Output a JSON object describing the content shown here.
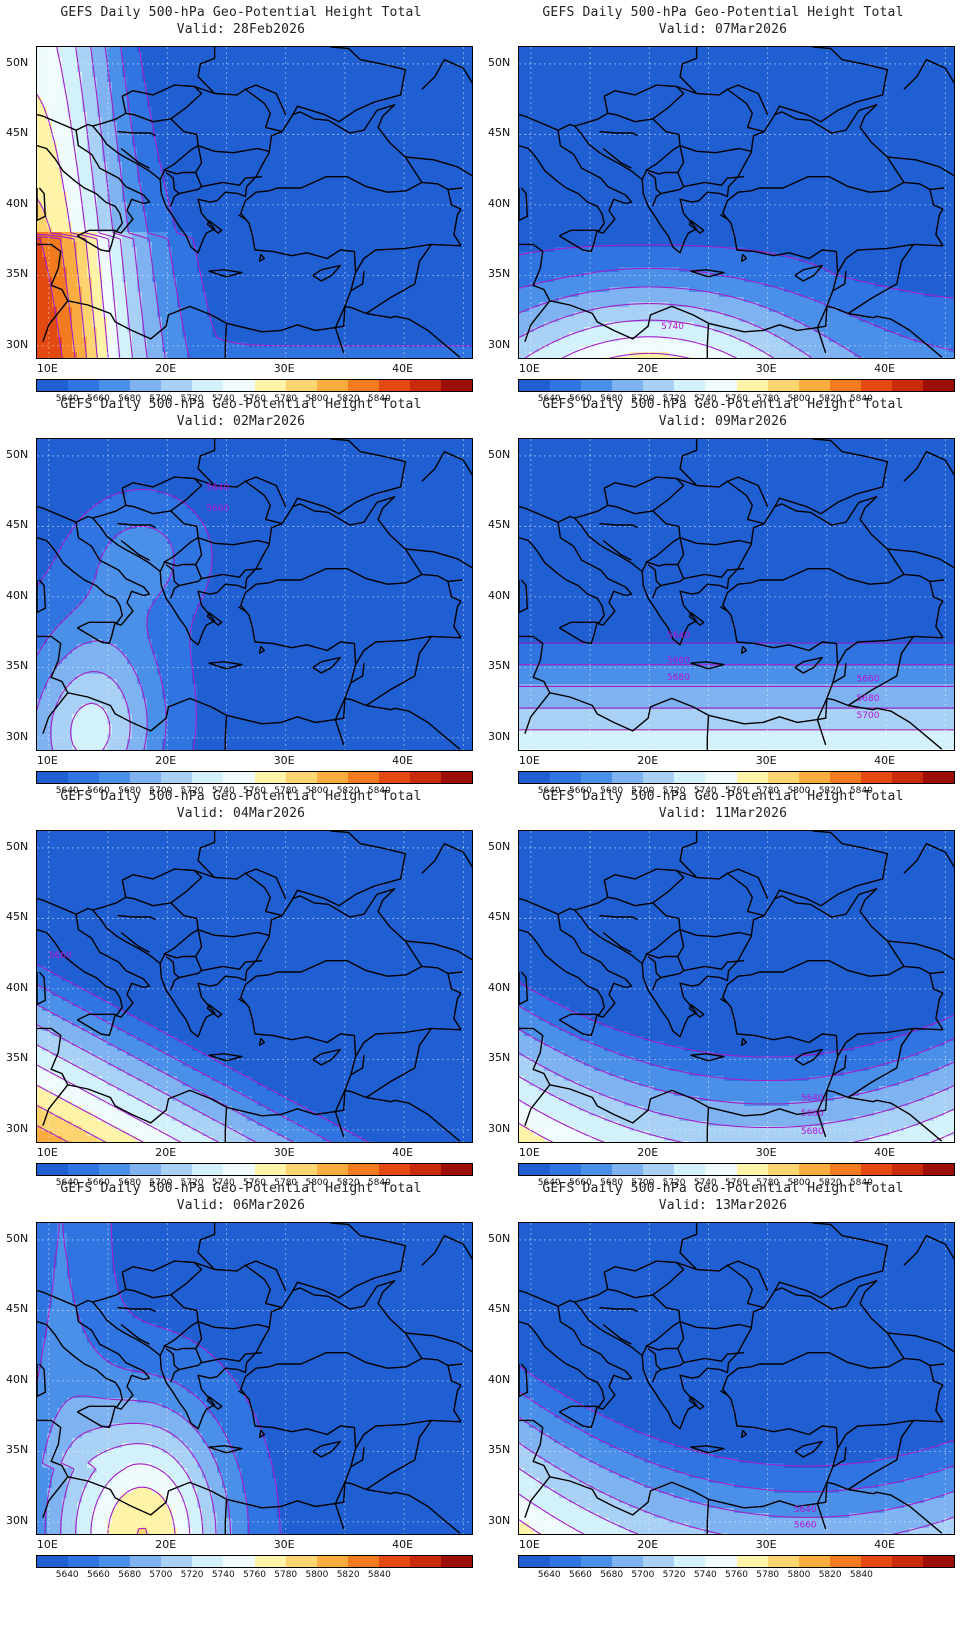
{
  "panels": [
    {
      "title": "GEFS Daily 500-hPa Geo-Potential Height Total",
      "valid": "Valid: 28Feb2026",
      "contour_labels": []
    },
    {
      "title": "GEFS Daily 500-hPa Geo-Potential Height Total",
      "valid": "Valid: 07Mar2026",
      "contour_labels": [
        "5740"
      ]
    },
    {
      "title": "GEFS Daily 500-hPa Geo-Potential Height Total",
      "valid": "Valid: 02Mar2026",
      "contour_labels": [
        "5640",
        "5660"
      ]
    },
    {
      "title": "GEFS Daily 500-hPa Geo-Potential Height Total",
      "valid": "Valid: 09Mar2026",
      "contour_labels": [
        "5640",
        "5660",
        "5680",
        "5660",
        "5680",
        "5700"
      ]
    },
    {
      "title": "GEFS Daily 500-hPa Geo-Potential Height Total",
      "valid": "Valid: 04Mar2026",
      "contour_labels": [
        "5660"
      ]
    },
    {
      "title": "GEFS Daily 500-hPa Geo-Potential Height Total",
      "valid": "Valid: 11Mar2026",
      "contour_labels": [
        "5640",
        "5660",
        "5680"
      ]
    },
    {
      "title": "GEFS Daily 500-hPa Geo-Potential Height Total",
      "valid": "Valid: 06Mar2026",
      "contour_labels": []
    },
    {
      "title": "GEFS Daily 500-hPa Geo-Potential Height Total",
      "valid": "Valid: 13Mar2026",
      "contour_labels": [
        "5640",
        "5660"
      ]
    }
  ],
  "lat_labels": [
    "50N",
    "45N",
    "40N",
    "35N",
    "30N"
  ],
  "lon_labels": [
    "10E",
    "20E",
    "30E",
    "40E"
  ],
  "colorbar": {
    "labels": [
      "5640",
      "5660",
      "5680",
      "5700",
      "5720",
      "5740",
      "5760",
      "5780",
      "5800",
      "5820",
      "5840"
    ],
    "colors": [
      "#1f5fd1",
      "#2f74e0",
      "#4a8fe8",
      "#7eb2f0",
      "#a9d1f6",
      "#d3f1fb",
      "#f0fbfd",
      "#fff3a8",
      "#fcd470",
      "#f9ac40",
      "#f27b20",
      "#e34a12",
      "#c82a0c",
      "#9c0f08"
    ]
  }
}
